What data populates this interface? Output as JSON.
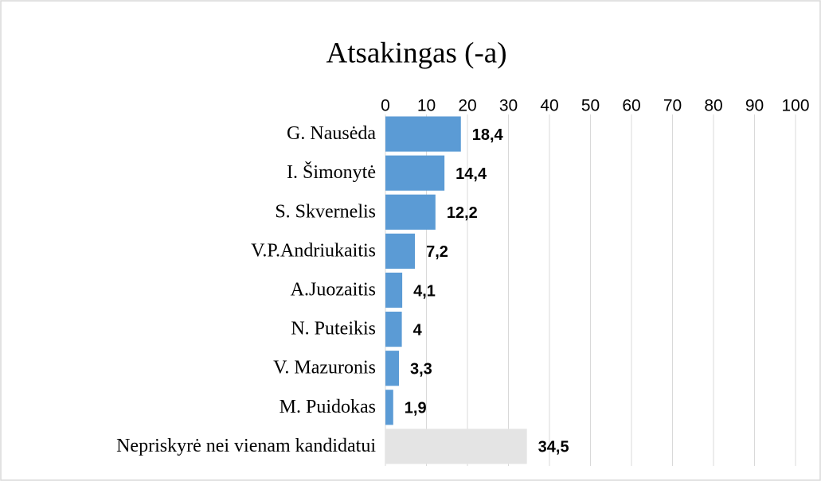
{
  "chart_data": {
    "type": "bar",
    "orientation": "horizontal",
    "title": "Atsakingas (-a)",
    "categories": [
      "G. Nausėda",
      "I. Šimonytė",
      "S. Skvernelis",
      "V.P.Andriukaitis",
      "A.Juozaitis",
      "N. Puteikis",
      "V. Mazuronis",
      "M. Puidokas",
      "Nepriskyrė nei vienam kandidatui"
    ],
    "values": [
      18.4,
      14.4,
      12.2,
      7.2,
      4.1,
      4,
      3.3,
      1.9,
      34.5
    ],
    "value_labels": [
      "18,4",
      "14,4",
      "12,2",
      "7,2",
      "4,1",
      "4",
      "3,3",
      "1,9",
      "34,5"
    ],
    "colors": [
      "#5b9bd5",
      "#5b9bd5",
      "#5b9bd5",
      "#5b9bd5",
      "#5b9bd5",
      "#5b9bd5",
      "#5b9bd5",
      "#5b9bd5",
      "#e4e4e4"
    ],
    "xlim": [
      0,
      100
    ],
    "xticks": [
      0,
      10,
      20,
      30,
      40,
      50,
      60,
      70,
      80,
      90,
      100
    ],
    "grid": true
  }
}
